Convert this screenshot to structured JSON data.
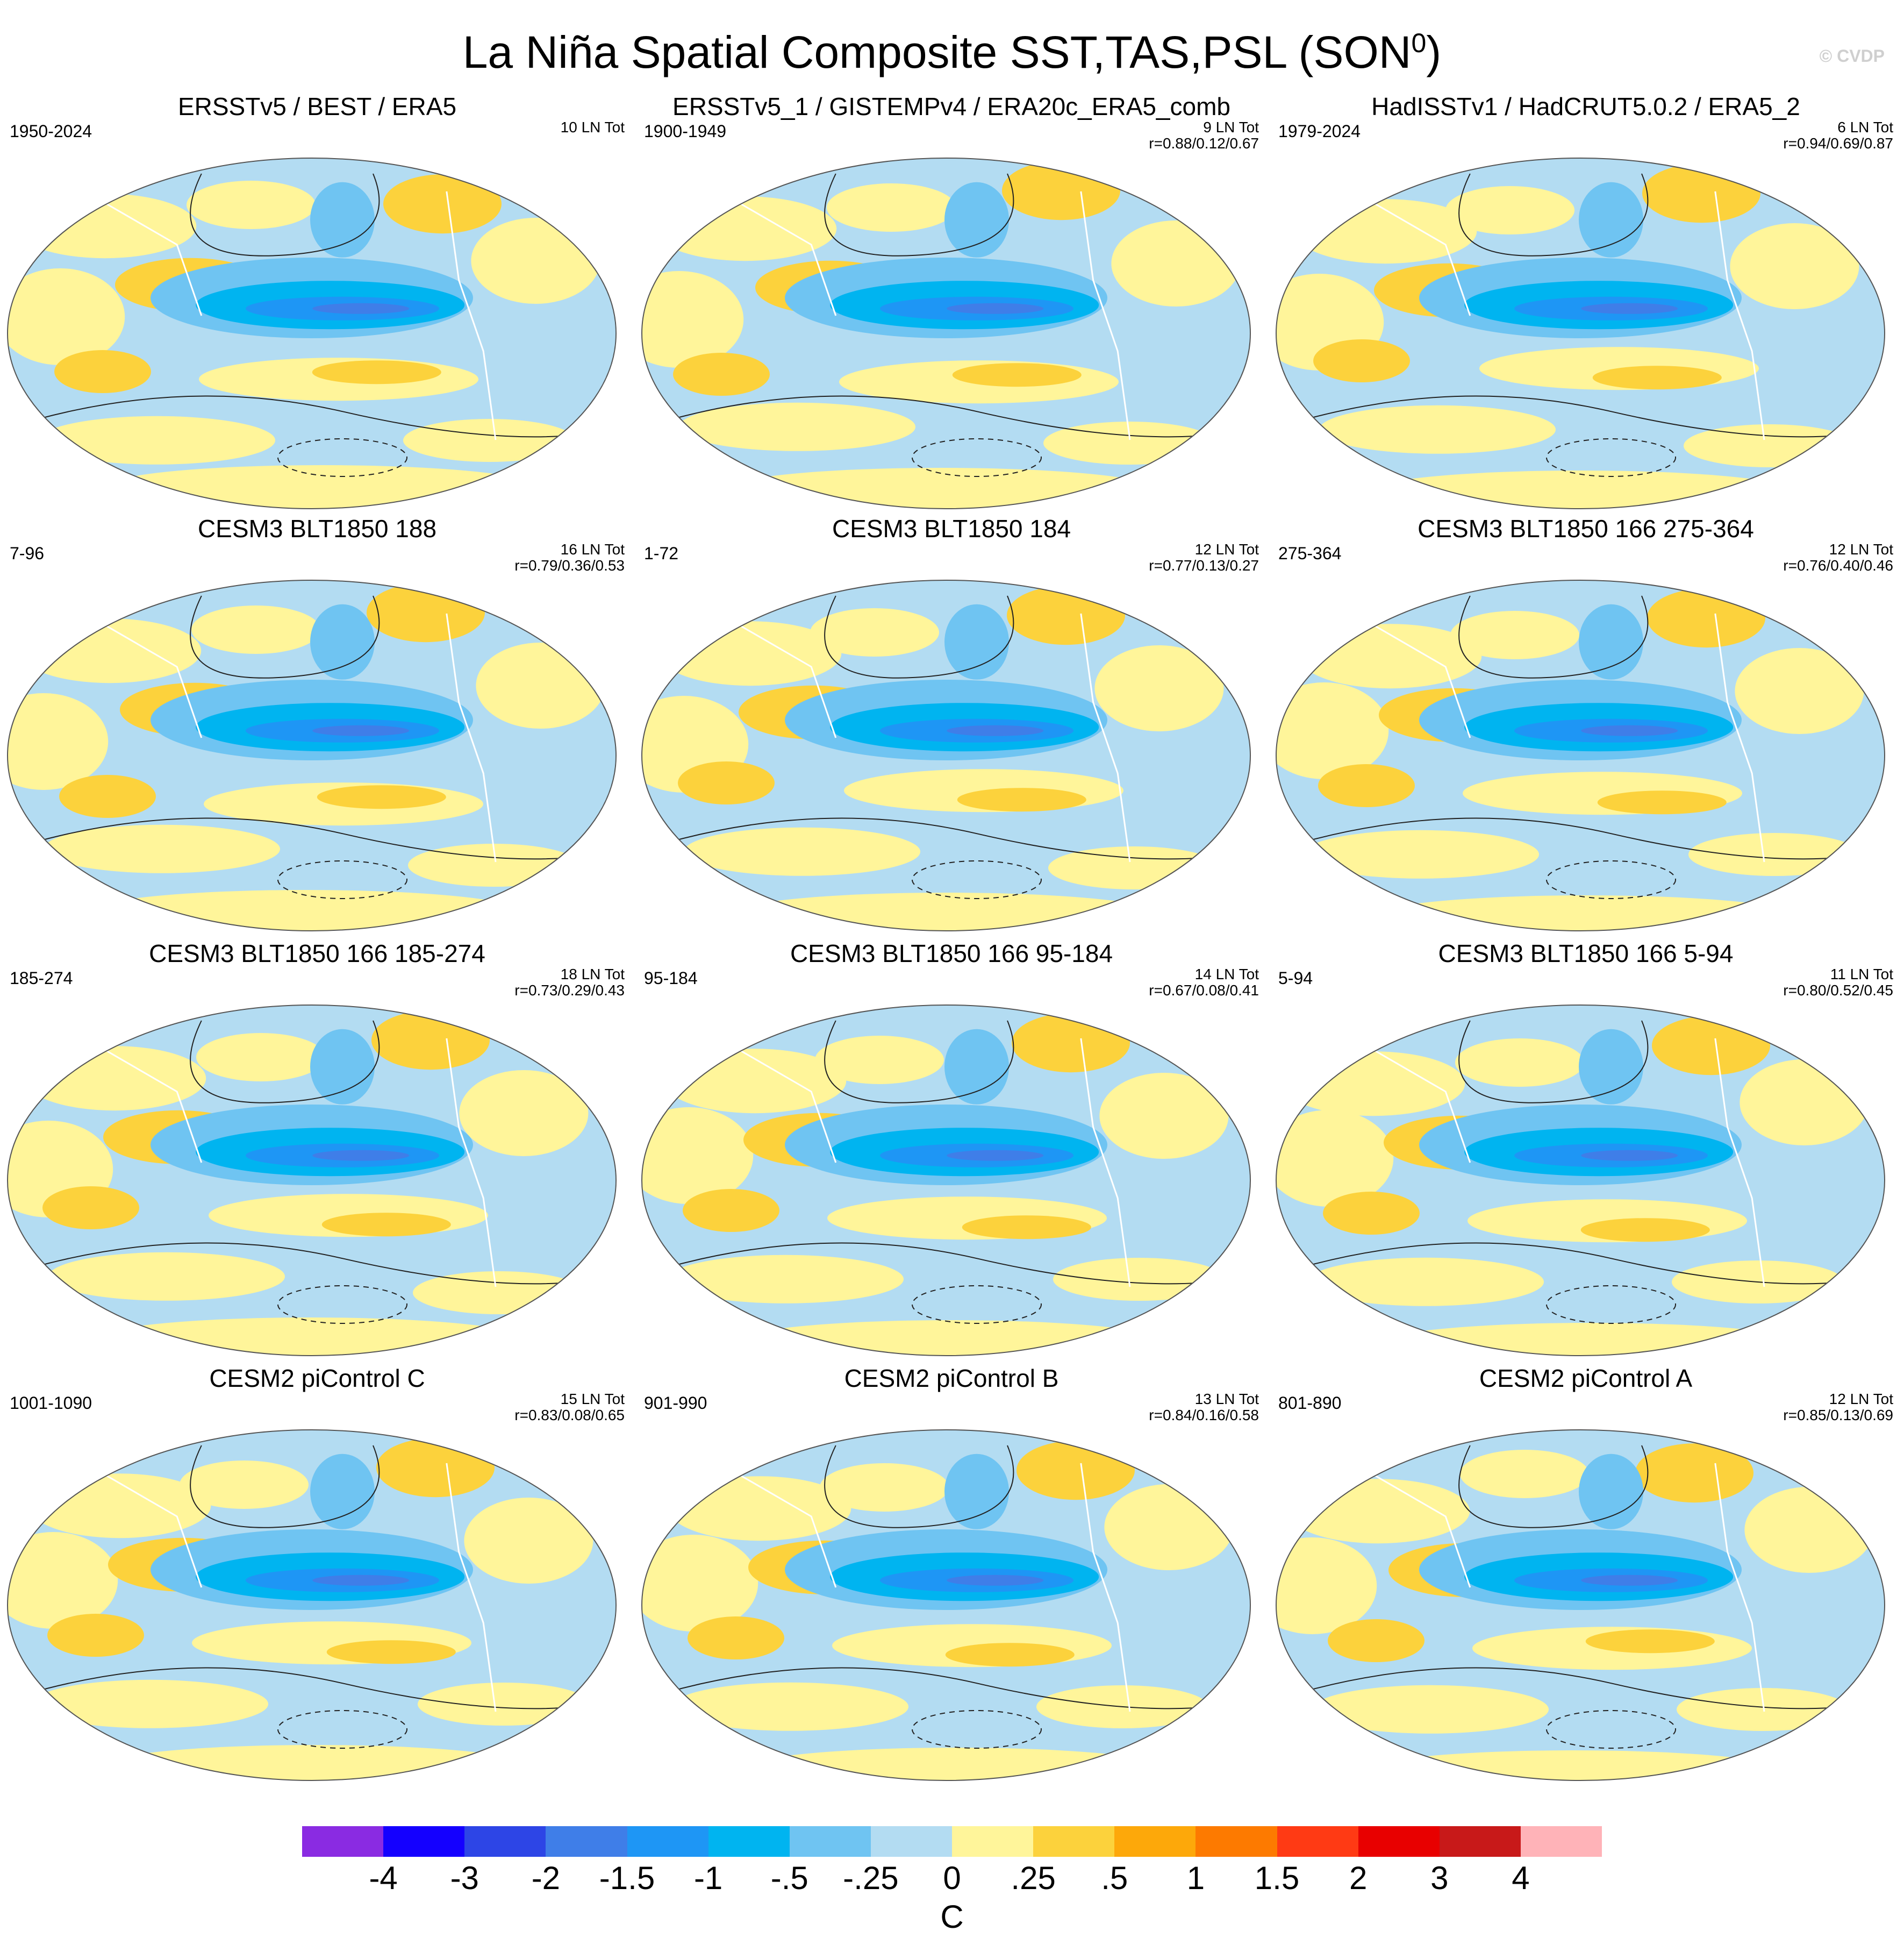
{
  "title_main": "La Niña Spatial Composite SST,TAS,PSL (SON",
  "title_sup": "0",
  "title_end": ")",
  "watermark": "© CVDP",
  "panels": [
    {
      "title": "ERSSTv5 / BEST / ERA5",
      "years": "1950-2024",
      "tot": "10 LN Tot",
      "r": ""
    },
    {
      "title": "ERSSTv5_1 / GISTEMPv4 / ERA20c_ERA5_comb",
      "years": "1900-1949",
      "tot": "9 LN Tot",
      "r": "r=0.88/0.12/0.67"
    },
    {
      "title": "HadISSTv1 / HadCRUT5.0.2 / ERA5_2",
      "years": "1979-2024",
      "tot": "6 LN Tot",
      "r": "r=0.94/0.69/0.87"
    },
    {
      "title": "CESM3 BLT1850 188",
      "years": "7-96",
      "tot": "16 LN Tot",
      "r": "r=0.79/0.36/0.53"
    },
    {
      "title": "CESM3 BLT1850 184",
      "years": "1-72",
      "tot": "12 LN Tot",
      "r": "r=0.77/0.13/0.27"
    },
    {
      "title": "CESM3 BLT1850 166 275-364",
      "years": "275-364",
      "tot": "12 LN Tot",
      "r": "r=0.76/0.40/0.46"
    },
    {
      "title": "CESM3 BLT1850 166 185-274",
      "years": "185-274",
      "tot": "18 LN Tot",
      "r": "r=0.73/0.29/0.43"
    },
    {
      "title": "CESM3 BLT1850 166 95-184",
      "years": "95-184",
      "tot": "14 LN Tot",
      "r": "r=0.67/0.08/0.41"
    },
    {
      "title": "CESM3 BLT1850 166 5-94",
      "years": "5-94",
      "tot": "11 LN Tot",
      "r": "r=0.80/0.52/0.45"
    },
    {
      "title": "CESM2 piControl C",
      "years": "1001-1090",
      "tot": "15 LN Tot",
      "r": "r=0.83/0.08/0.65"
    },
    {
      "title": "CESM2 piControl B",
      "years": "901-990",
      "tot": "13 LN Tot",
      "r": "r=0.84/0.16/0.58"
    },
    {
      "title": "CESM2 piControl A",
      "years": "801-890",
      "tot": "12 LN Tot",
      "r": "r=0.85/0.13/0.69"
    }
  ],
  "colorbar": {
    "colors": [
      "#8a2be2",
      "#1400ff",
      "#2d45e6",
      "#3f7ee8",
      "#1e96f5",
      "#00b4f0",
      "#6fc4f2",
      "#b3dcf2",
      "#fff59a",
      "#fcd23c",
      "#fda80a",
      "#fd7a00",
      "#ff3a14",
      "#e80000",
      "#c81919",
      "#ffb3b8"
    ],
    "labels": [
      "-4",
      "-3",
      "-2",
      "-1.5",
      "-1",
      "-.5",
      "-.25",
      "0",
      ".25",
      ".5",
      "1",
      "1.5",
      "2",
      "3",
      "4"
    ],
    "unit": "C"
  },
  "map_colors": {
    "ocean_base": "#b3dcf2",
    "cold1": "#6fc4f2",
    "cold2": "#00b4f0",
    "cold3": "#1e96f5",
    "cold4": "#3f7ee8",
    "warm1": "#fff59a",
    "warm2": "#fcd23c",
    "warm3": "#fda80a",
    "contour": "#222222",
    "coast": "#ffffff"
  }
}
